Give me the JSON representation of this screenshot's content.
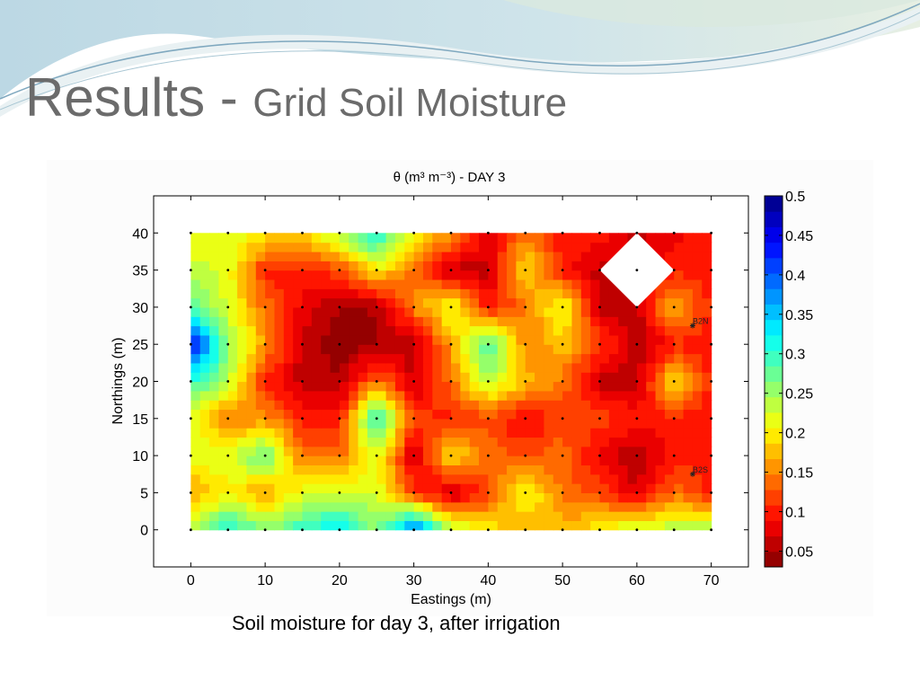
{
  "slide": {
    "title_main": "Results - ",
    "title_sub": "Grid Soil Moisture",
    "caption": "Soil moisture for day 3, after irrigation"
  },
  "chart_data": {
    "type": "heatmap",
    "title": "θ (m³ m⁻³) - DAY 3",
    "xlabel": "Eastings (m)",
    "ylabel": "Northings (m)",
    "xlim": [
      -5,
      75
    ],
    "ylim": [
      -5,
      45
    ],
    "x": [
      0,
      5,
      10,
      15,
      20,
      25,
      30,
      35,
      40,
      45,
      50,
      55,
      60,
      65,
      70
    ],
    "y": [
      40,
      35,
      30,
      25,
      20,
      15,
      10,
      5,
      0
    ],
    "x_ticks": [
      0,
      10,
      20,
      30,
      40,
      50,
      60,
      70
    ],
    "y_ticks": [
      0,
      5,
      10,
      15,
      20,
      25,
      30,
      35,
      40
    ],
    "z": [
      [
        0.2,
        0.22,
        0.2,
        0.18,
        0.25,
        0.32,
        0.2,
        0.16,
        0.08,
        0.14,
        0.1,
        0.1,
        0.06,
        0.08,
        0.1
      ],
      [
        0.24,
        0.22,
        0.1,
        0.1,
        0.12,
        0.2,
        0.14,
        0.06,
        0.06,
        0.2,
        0.1,
        0.06,
        null,
        0.1,
        0.1
      ],
      [
        0.28,
        0.22,
        0.14,
        0.08,
        0.05,
        0.05,
        0.15,
        0.22,
        0.1,
        0.14,
        0.22,
        0.06,
        0.06,
        0.18,
        0.1
      ],
      [
        0.45,
        0.26,
        0.16,
        0.06,
        0.04,
        0.05,
        0.06,
        0.16,
        0.3,
        0.15,
        0.18,
        0.12,
        0.05,
        0.1,
        0.1
      ],
      [
        0.3,
        0.24,
        0.1,
        0.06,
        0.05,
        0.15,
        0.06,
        0.14,
        0.24,
        0.18,
        0.14,
        0.06,
        0.06,
        0.2,
        0.1
      ],
      [
        0.22,
        0.14,
        0.16,
        0.1,
        0.1,
        0.32,
        0.12,
        0.1,
        0.12,
        0.08,
        0.12,
        0.12,
        0.1,
        0.1,
        0.1
      ],
      [
        0.22,
        0.22,
        0.28,
        0.14,
        0.14,
        0.22,
        0.06,
        0.2,
        0.14,
        0.12,
        0.14,
        0.08,
        0.05,
        0.1,
        0.1
      ],
      [
        0.16,
        0.2,
        0.16,
        0.22,
        0.22,
        0.22,
        0.12,
        0.06,
        0.12,
        0.22,
        0.14,
        0.12,
        0.07,
        0.14,
        0.1
      ],
      [
        0.24,
        0.32,
        0.26,
        0.3,
        0.34,
        0.26,
        0.4,
        0.24,
        0.2,
        0.16,
        0.18,
        0.2,
        0.24,
        0.24,
        0.26
      ]
    ],
    "excluded_region": {
      "center": [
        60,
        35
      ],
      "half_width": 5
    },
    "colorbar": {
      "min": 0.03,
      "max": 0.5,
      "ticks": [
        0.05,
        0.1,
        0.15,
        0.2,
        0.25,
        0.3,
        0.35,
        0.4,
        0.45,
        0.5
      ],
      "tick_labels": [
        "0.05",
        "0.1",
        "0.15",
        "0.2",
        "0.25",
        "0.3",
        "0.35",
        "0.4",
        "0.45",
        "0.5"
      ]
    },
    "colormap": "jet-reversed",
    "annotations": [
      {
        "label": "B2N",
        "x": 67.5,
        "y": 27.5
      },
      {
        "label": "B2S",
        "x": 67.5,
        "y": 7.5
      }
    ],
    "grid": false
  }
}
